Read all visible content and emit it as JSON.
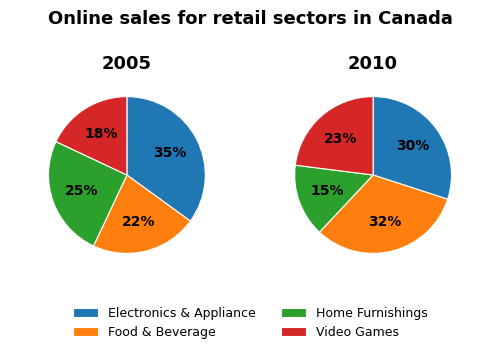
{
  "title": "Online sales for retail sectors in Canada",
  "legend": "bottom",
  "chart_data": [
    {
      "type": "pie",
      "title": "2005",
      "categories": [
        "Electronics & Appliance",
        "Food & Beverage",
        "Home Furnishings",
        "Video Games"
      ],
      "values": [
        35,
        22,
        25,
        18
      ],
      "value_labels": [
        "35%",
        "22%",
        "25%",
        "18%"
      ],
      "data_labels": true
    },
    {
      "type": "pie",
      "title": "2010",
      "categories": [
        "Electronics & Appliance",
        "Food & Beverage",
        "Home Furnishings",
        "Video Games"
      ],
      "values": [
        30,
        32,
        15,
        23
      ],
      "value_labels": [
        "30%",
        "32%",
        "15%",
        "23%"
      ],
      "data_labels": true
    }
  ]
}
